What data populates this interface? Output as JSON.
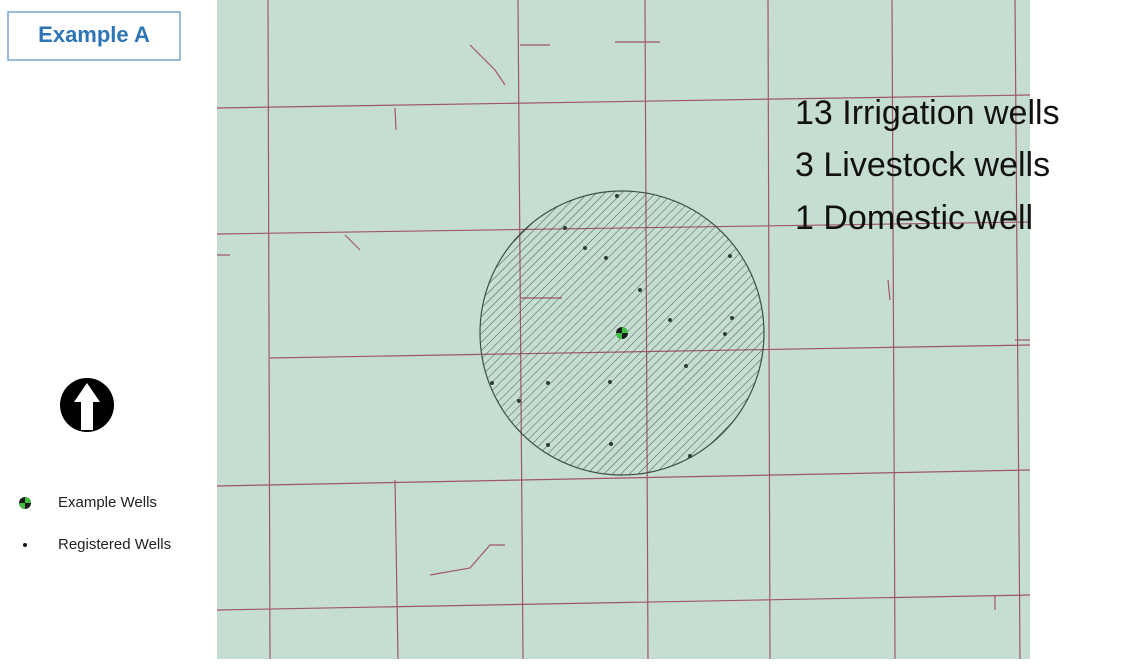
{
  "title": "Example A",
  "annotations": [
    "13 Irrigation wells",
    "3 Livestock wells",
    "1 Domestic well"
  ],
  "legend": [
    {
      "label": "Example Wells"
    },
    {
      "label": "Registered Wells"
    }
  ]
}
